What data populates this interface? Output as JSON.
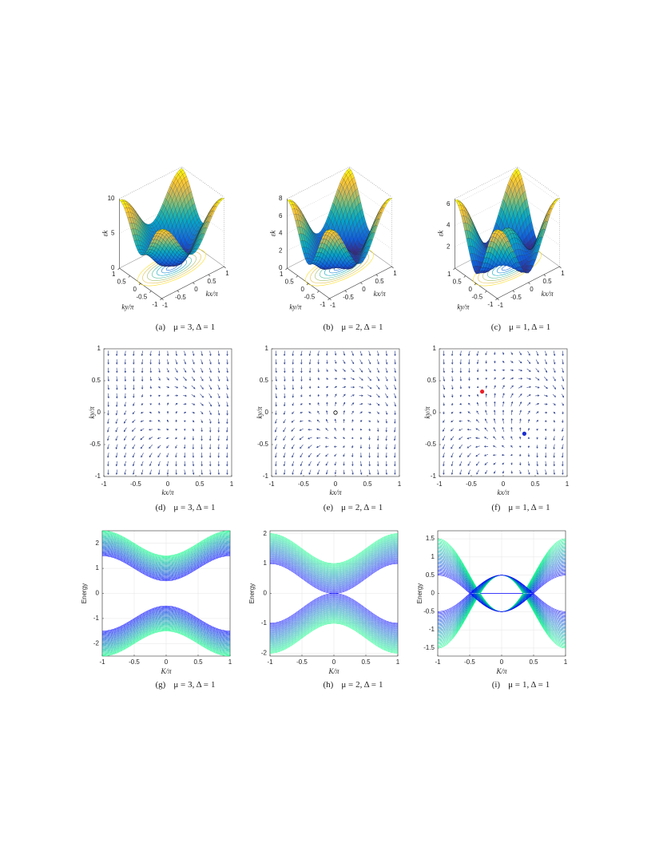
{
  "chart_data": [
    {
      "type": "surface",
      "xlabel": "kx/π",
      "ylabel": "ky/π",
      "zlabel": "εk",
      "xlim": [
        -1,
        1
      ],
      "ylim": [
        -1,
        1
      ],
      "zlim": [
        0,
        10
      ],
      "xticks": [
        -1,
        -0.5,
        0,
        0.5,
        1
      ],
      "yticks": [
        -1,
        -0.5,
        0,
        0.5,
        1
      ],
      "zticks": [
        0,
        5,
        10
      ],
      "caption": {
        "label": "(a)",
        "mu_text": "μ =",
        "mu": 3,
        "delta_text": ", Δ =",
        "delta": 1
      }
    },
    {
      "type": "surface",
      "xlabel": "kx/π",
      "ylabel": "ky/π",
      "zlabel": "εk",
      "xlim": [
        -1,
        1
      ],
      "ylim": [
        -1,
        1
      ],
      "zlim": [
        0,
        8
      ],
      "xticks": [
        -1,
        -0.5,
        0,
        0.5,
        1
      ],
      "yticks": [
        -1,
        -0.5,
        0,
        0.5,
        1
      ],
      "zticks": [
        0,
        2,
        4,
        6,
        8
      ],
      "caption": {
        "label": "(b)",
        "mu_text": "μ =",
        "mu": 2,
        "delta_text": ", Δ =",
        "delta": 1
      }
    },
    {
      "type": "surface",
      "xlabel": "kx/π",
      "ylabel": "ky/π",
      "zlabel": "εk",
      "xlim": [
        -1,
        1
      ],
      "ylim": [
        -1,
        1
      ],
      "zlim": [
        0,
        6.5
      ],
      "xticks": [
        -1,
        -0.5,
        0,
        0.5,
        1
      ],
      "yticks": [
        -1,
        -0.5,
        0,
        0.5,
        1
      ],
      "zticks": [
        2,
        4,
        6
      ],
      "caption": {
        "label": "(c)",
        "mu_text": "μ =",
        "mu": 1,
        "delta_text": ", Δ =",
        "delta": 1
      }
    },
    {
      "type": "quiver",
      "xlabel": "kx/π",
      "ylabel": "ky/π",
      "xlim": [
        -1,
        1
      ],
      "ylim": [
        -1,
        1
      ],
      "xticks": [
        -1,
        -0.5,
        0,
        0.5,
        1
      ],
      "yticks": [
        -1,
        -0.5,
        0,
        0.5,
        1
      ],
      "points": [],
      "caption": {
        "label": "(d)",
        "mu_text": "μ =",
        "mu": 3,
        "delta_text": ", Δ =",
        "delta": 1
      }
    },
    {
      "type": "quiver",
      "xlabel": "kx/π",
      "ylabel": "ky/π",
      "xlim": [
        -1,
        1
      ],
      "ylim": [
        -1,
        1
      ],
      "xticks": [
        -1,
        -0.5,
        0,
        0.5,
        1
      ],
      "yticks": [
        -1,
        -0.5,
        0,
        0.5,
        1
      ],
      "points": [
        {
          "x": 0,
          "y": 0,
          "color": "#000000",
          "hollow": true
        }
      ],
      "caption": {
        "label": "(e)",
        "mu_text": "μ =",
        "mu": 2,
        "delta_text": ", Δ =",
        "delta": 1
      }
    },
    {
      "type": "quiver",
      "xlabel": "kx/π",
      "ylabel": "ky/π",
      "xlim": [
        -1,
        1
      ],
      "ylim": [
        -1,
        1
      ],
      "xticks": [
        -1,
        -0.5,
        0,
        0.5,
        1
      ],
      "yticks": [
        -1,
        -0.5,
        0,
        0.5,
        1
      ],
      "points": [
        {
          "x": -0.33,
          "y": 0.33,
          "color": "#e8202a",
          "hollow": false
        },
        {
          "x": 0.33,
          "y": -0.33,
          "color": "#1a2ed0",
          "hollow": false
        }
      ],
      "caption": {
        "label": "(f)",
        "mu_text": "μ =",
        "mu": 1,
        "delta_text": ", Δ =",
        "delta": 1
      }
    },
    {
      "type": "bands",
      "xlabel": "K/π",
      "ylabel": "Energy",
      "xlim": [
        -1,
        1
      ],
      "ylim": [
        -2.5,
        2.5
      ],
      "xticks": [
        -1,
        -0.5,
        0,
        0.5,
        1
      ],
      "yticks": [
        -2,
        -1,
        0,
        1,
        2
      ],
      "grid": true,
      "caption": {
        "label": "(g)",
        "mu_text": "μ =",
        "mu": 3,
        "delta_text": ", Δ =",
        "delta": 1
      }
    },
    {
      "type": "bands",
      "xlabel": "K/π",
      "ylabel": "Energy",
      "xlim": [
        -1,
        1
      ],
      "ylim": [
        -2.1,
        2.1
      ],
      "xticks": [
        -1,
        -0.5,
        0,
        0.5,
        1
      ],
      "yticks": [
        -2,
        -1,
        0,
        1,
        2
      ],
      "grid": true,
      "caption": {
        "label": "(h)",
        "mu_text": "μ =",
        "mu": 2,
        "delta_text": ", Δ =",
        "delta": 1
      }
    },
    {
      "type": "bands",
      "xlabel": "K/π",
      "ylabel": "Energy",
      "xlim": [
        -1,
        1
      ],
      "ylim": [
        -1.72,
        1.72
      ],
      "xticks": [
        -1,
        -0.5,
        0,
        0.5,
        1
      ],
      "yticks": [
        -1.5,
        -1,
        -0.5,
        0,
        0.5,
        1,
        1.5
      ],
      "grid": true,
      "caption": {
        "label": "(i)",
        "mu_text": "μ =",
        "mu": 1,
        "delta_text": ", Δ =",
        "delta": 1
      }
    }
  ]
}
